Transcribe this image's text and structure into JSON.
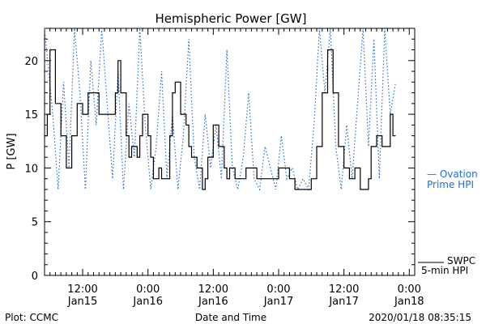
{
  "chart_data": {
    "type": "line",
    "title": "Hemispheric Power [GW]",
    "ylabel": "P [GW]",
    "xlabel": "Date and Time",
    "ylim": [
      0,
      23
    ],
    "xlim": [
      0,
      68
    ],
    "yticks": [
      0,
      5,
      10,
      15,
      20
    ],
    "x_unit": "hours from 2020-01-15 05:00",
    "xticks": [
      {
        "x": 7,
        "time": "12:00",
        "date": "Jan15"
      },
      {
        "x": 19,
        "time": "0:00",
        "date": "Jan16"
      },
      {
        "x": 31,
        "time": "12:00",
        "date": "Jan16"
      },
      {
        "x": 43,
        "time": "0:00",
        "date": "Jan17"
      },
      {
        "x": 55,
        "time": "12:00",
        "date": "Jan17"
      },
      {
        "x": 67,
        "time": "0:00",
        "date": "Jan18"
      }
    ],
    "grid": false,
    "series": [
      {
        "name": "SWPC 5-min HPI",
        "color": "#000000",
        "style": "solid",
        "points": [
          [
            0.0,
            13
          ],
          [
            0.5,
            15
          ],
          [
            1.0,
            21
          ],
          [
            1.5,
            21
          ],
          [
            2.0,
            16
          ],
          [
            3.0,
            13
          ],
          [
            4.0,
            10
          ],
          [
            5.0,
            13
          ],
          [
            6.0,
            16
          ],
          [
            7.0,
            15
          ],
          [
            8.0,
            17
          ],
          [
            9.0,
            17
          ],
          [
            10.0,
            15
          ],
          [
            11.0,
            15
          ],
          [
            12.0,
            15
          ],
          [
            13.0,
            17
          ],
          [
            13.5,
            20
          ],
          [
            14.0,
            17
          ],
          [
            15.0,
            13
          ],
          [
            15.5,
            11
          ],
          [
            16.0,
            12
          ],
          [
            17.0,
            11
          ],
          [
            17.5,
            13
          ],
          [
            18.0,
            15
          ],
          [
            19.0,
            13
          ],
          [
            19.5,
            11
          ],
          [
            20.0,
            9
          ],
          [
            20.5,
            9
          ],
          [
            21.0,
            10
          ],
          [
            21.5,
            9
          ],
          [
            22.0,
            9
          ],
          [
            23.0,
            13
          ],
          [
            23.5,
            17
          ],
          [
            24.0,
            18
          ],
          [
            25.0,
            15
          ],
          [
            26.0,
            14
          ],
          [
            26.5,
            12
          ],
          [
            27.0,
            11
          ],
          [
            28.0,
            10
          ],
          [
            29.0,
            8
          ],
          [
            29.5,
            9
          ],
          [
            30.0,
            11
          ],
          [
            31.0,
            14
          ],
          [
            32.0,
            12
          ],
          [
            33.0,
            10
          ],
          [
            33.5,
            9
          ],
          [
            34.0,
            10
          ],
          [
            35.0,
            9
          ],
          [
            36.0,
            9
          ],
          [
            37.0,
            10
          ],
          [
            38.0,
            10
          ],
          [
            39.0,
            9
          ],
          [
            40.0,
            9
          ],
          [
            41.0,
            9
          ],
          [
            42.0,
            9
          ],
          [
            43.0,
            10
          ],
          [
            44.0,
            10
          ],
          [
            45.0,
            9
          ],
          [
            46.0,
            8
          ],
          [
            48.0,
            8
          ],
          [
            49.0,
            9
          ],
          [
            50.0,
            12
          ],
          [
            51.0,
            17
          ],
          [
            52.0,
            21
          ],
          [
            53.0,
            17
          ],
          [
            54.0,
            12
          ],
          [
            55.0,
            10
          ],
          [
            56.0,
            9
          ],
          [
            57.0,
            10
          ],
          [
            58.0,
            8
          ],
          [
            59.0,
            8
          ],
          [
            59.5,
            9
          ],
          [
            60.0,
            12
          ],
          [
            61.0,
            13
          ],
          [
            62.0,
            12
          ],
          [
            63.0,
            12
          ],
          [
            63.5,
            15
          ],
          [
            64.0,
            13
          ],
          [
            64.5,
            13
          ]
        ]
      },
      {
        "name": "Ovation Prime HPI",
        "color": "#1f6fd6",
        "style": "dotted",
        "points": [
          [
            0.0,
            23
          ],
          [
            1.5,
            15
          ],
          [
            2.5,
            8
          ],
          [
            3.5,
            18
          ],
          [
            4.5,
            10
          ],
          [
            5.5,
            23
          ],
          [
            6.5,
            17
          ],
          [
            7.5,
            8
          ],
          [
            8.5,
            20
          ],
          [
            9.5,
            14
          ],
          [
            10.5,
            23
          ],
          [
            11.5,
            16
          ],
          [
            12.5,
            9
          ],
          [
            13.5,
            19
          ],
          [
            14.5,
            8
          ],
          [
            15.5,
            16
          ],
          [
            16.5,
            11
          ],
          [
            17.5,
            23
          ],
          [
            18.5,
            14
          ],
          [
            19.5,
            8
          ],
          [
            20.5,
            12
          ],
          [
            21.5,
            19
          ],
          [
            22.5,
            9
          ],
          [
            23.5,
            15
          ],
          [
            24.5,
            8
          ],
          [
            25.5,
            13
          ],
          [
            26.5,
            22
          ],
          [
            27.5,
            11
          ],
          [
            28.5,
            8
          ],
          [
            29.5,
            15
          ],
          [
            30.5,
            10
          ],
          [
            31.5,
            14
          ],
          [
            32.5,
            9
          ],
          [
            33.5,
            21
          ],
          [
            34.5,
            10
          ],
          [
            35.5,
            8
          ],
          [
            36.5,
            11
          ],
          [
            37.5,
            17
          ],
          [
            38.5,
            9
          ],
          [
            39.5,
            8
          ],
          [
            40.5,
            12
          ],
          [
            41.5,
            10
          ],
          [
            42.5,
            8
          ],
          [
            43.5,
            13
          ],
          [
            44.5,
            9
          ],
          [
            45.5,
            10
          ],
          [
            46.5,
            8
          ],
          [
            47.5,
            9
          ],
          [
            48.5,
            8
          ],
          [
            49.5,
            14
          ],
          [
            50.5,
            23
          ],
          [
            51.5,
            17
          ],
          [
            52.5,
            23
          ],
          [
            53.5,
            12
          ],
          [
            54.5,
            8
          ],
          [
            55.5,
            14
          ],
          [
            56.5,
            9
          ],
          [
            57.5,
            16
          ],
          [
            58.5,
            23
          ],
          [
            59.5,
            12
          ],
          [
            60.5,
            22
          ],
          [
            61.5,
            9
          ],
          [
            62.5,
            23
          ],
          [
            63.5,
            15
          ],
          [
            64.5,
            18
          ]
        ]
      }
    ],
    "legend": {
      "position": "right",
      "ovation_label_1": "— Ovation",
      "ovation_label_2": "Prime HPI",
      "swpc_label_1": "SWPC",
      "swpc_label_2": "5-min HPI"
    }
  },
  "footer": {
    "left": "Plot: CCMC",
    "center": "Date and Time",
    "right": "2020/01/18 08:35:15"
  }
}
